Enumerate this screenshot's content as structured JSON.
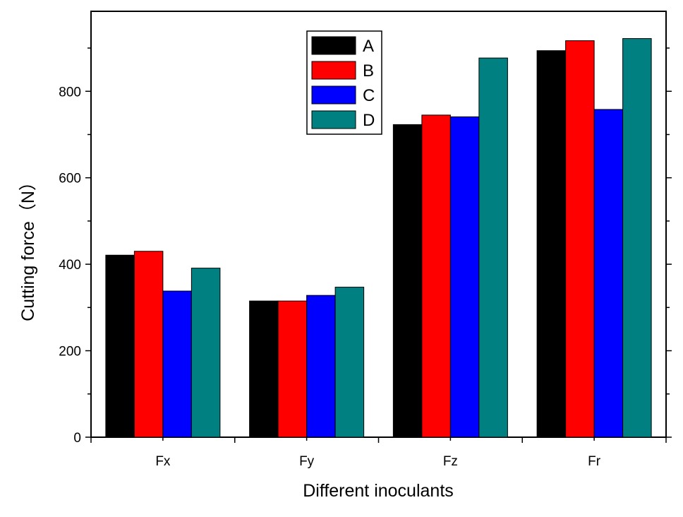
{
  "chart_data": {
    "type": "bar",
    "title": "",
    "xlabel": "Different inoculants",
    "ylabel": "Cutting force（N）",
    "categories": [
      "Fx",
      "Fy",
      "Fz",
      "Fr"
    ],
    "series": [
      {
        "name": "A",
        "color": "#000000",
        "values": [
          421,
          315,
          723,
          894
        ]
      },
      {
        "name": "B",
        "color": "#ff0000",
        "values": [
          430,
          315,
          745,
          917
        ]
      },
      {
        "name": "C",
        "color": "#0000ff",
        "values": [
          338,
          328,
          741,
          758
        ]
      },
      {
        "name": "D",
        "color": "#008080",
        "values": [
          391,
          347,
          877,
          922
        ]
      }
    ],
    "ylim": [
      0,
      985
    ],
    "yticks": [
      0,
      200,
      400,
      600,
      800
    ],
    "grid": false,
    "legend_position": "top-center"
  }
}
